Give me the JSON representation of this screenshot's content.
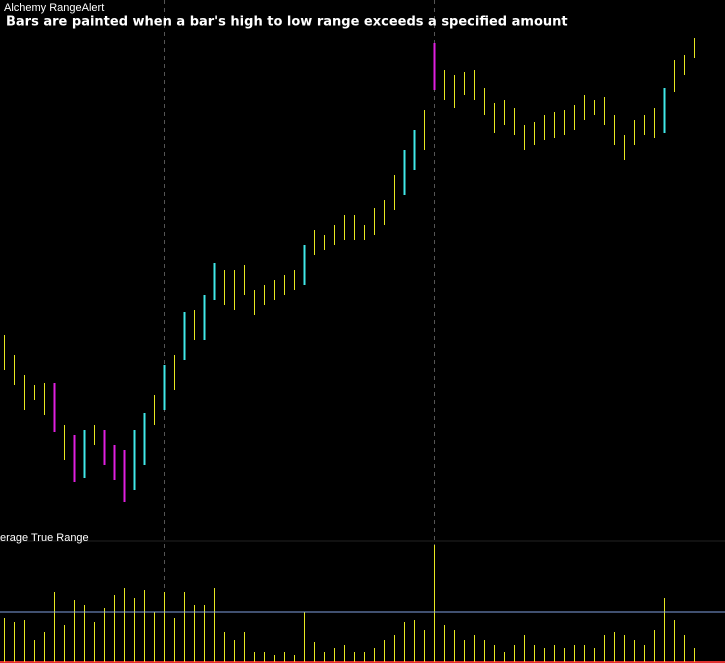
{
  "chart_data": [
    {
      "type": "range_bar",
      "indicator": "Alchemy RangeAlert",
      "title": "Bars are painted when a bar's high to low range exceeds a specified amount",
      "high": [
        205,
        185,
        165,
        155,
        157,
        157,
        115,
        105,
        110,
        115,
        110,
        95,
        90,
        110,
        127,
        145,
        175,
        185,
        228,
        230,
        245,
        277,
        270,
        270,
        275,
        250,
        255,
        260,
        265,
        270,
        295,
        310,
        305,
        315,
        325,
        325,
        315,
        332,
        340,
        365,
        390,
        410,
        430,
        497,
        470,
        465,
        468,
        470,
        452,
        437,
        440,
        432,
        415,
        418,
        425,
        428,
        430,
        435,
        445,
        440,
        443,
        425,
        405,
        420,
        425,
        432,
        452,
        480,
        485,
        502
      ],
      "low": [
        170,
        155,
        130,
        140,
        125,
        108,
        80,
        58,
        62,
        95,
        75,
        60,
        38,
        50,
        75,
        115,
        130,
        150,
        180,
        200,
        200,
        240,
        235,
        230,
        245,
        225,
        235,
        240,
        245,
        250,
        255,
        285,
        290,
        295,
        300,
        300,
        300,
        305,
        315,
        330,
        345,
        370,
        390,
        450,
        440,
        432,
        445,
        440,
        425,
        407,
        415,
        405,
        390,
        395,
        400,
        402,
        405,
        410,
        420,
        425,
        415,
        395,
        380,
        395,
        405,
        402,
        407,
        448,
        465,
        482
      ],
      "colors": [
        "#e8e820",
        "#e8e820",
        "#e8e820",
        "#e8e820",
        "#e8e820",
        "#e020e0",
        "#e8e820",
        "#e020e0",
        "#40e8e8",
        "#e8e820",
        "#e020e0",
        "#e020e0",
        "#e020e0",
        "#40e8e8",
        "#40e8e8",
        "#e8e820",
        "#40e8e8",
        "#e8e820",
        "#40e8e8",
        "#e8e820",
        "#40e8e8",
        "#40e8e8",
        "#e8e820",
        "#e8e820",
        "#e8e820",
        "#e8e820",
        "#e8e820",
        "#e8e820",
        "#e8e820",
        "#e8e820",
        "#40e8e8",
        "#e8e820",
        "#e8e820",
        "#e8e820",
        "#e8e820",
        "#e8e820",
        "#e8e820",
        "#e8e820",
        "#e8e820",
        "#e8e820",
        "#40e8e8",
        "#40e8e8",
        "#e8e820",
        "#e020e0",
        "#e8e820",
        "#e8e820",
        "#e8e820",
        "#e8e820",
        "#e8e820",
        "#e8e820",
        "#e8e820",
        "#e8e820",
        "#e8e820",
        "#e8e820",
        "#e8e820",
        "#e8e820",
        "#e8e820",
        "#e8e820",
        "#e8e820",
        "#e8e820",
        "#e8e820",
        "#e8e820",
        "#e8e820",
        "#e8e820",
        "#e8e820",
        "#e8e820",
        "#40e8e8",
        "#e8e820",
        "#e8e820",
        "#e8e820"
      ],
      "ylim": [
        0,
        540
      ]
    },
    {
      "type": "bar",
      "title": "erage True Range",
      "values": [
        44,
        40,
        42,
        22,
        30,
        70,
        37,
        62,
        57,
        40,
        54,
        67,
        74,
        64,
        72,
        50,
        70,
        44,
        70,
        57,
        57,
        74,
        30,
        22,
        30,
        10,
        10,
        7,
        10,
        7,
        50,
        20,
        10,
        14,
        17,
        10,
        10,
        14,
        22,
        27,
        40,
        42,
        32,
        117,
        37,
        32,
        22,
        27,
        22,
        17,
        10,
        17,
        27,
        17,
        14,
        17,
        14,
        17,
        17,
        14,
        27,
        30,
        27,
        22,
        17,
        32,
        64,
        42,
        27,
        14
      ],
      "color": "#e8e820",
      "level": 50,
      "level_color": "#7f9fdf",
      "ylim": [
        0,
        120
      ]
    }
  ]
}
